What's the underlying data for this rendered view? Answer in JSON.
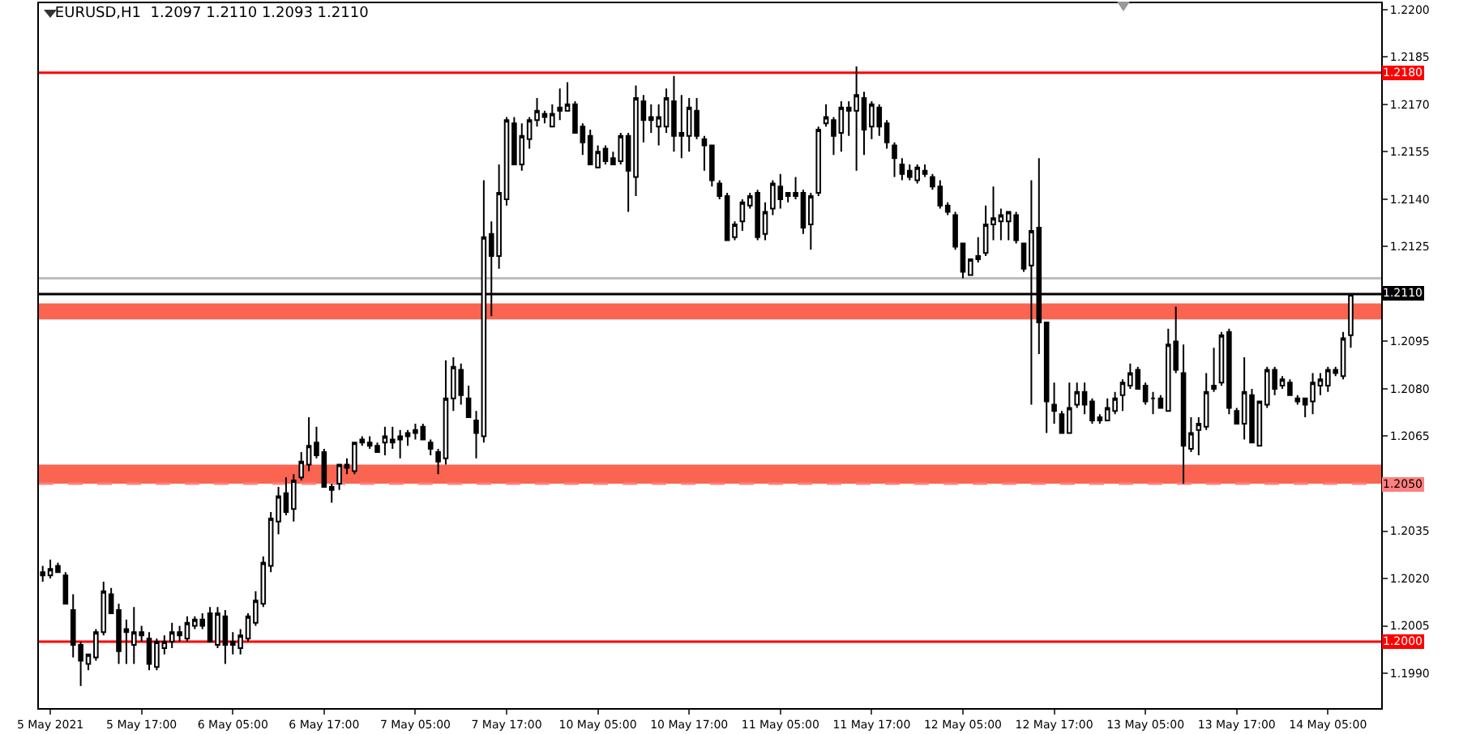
{
  "chart_data": {
    "type": "candlestick",
    "title": "EURUSD,H1  1.2097 1.2110 1.2093 1.2110",
    "categories": [
      null,
      "5 May 2021",
      null,
      null,
      null,
      null,
      null,
      null,
      null,
      null,
      null,
      null,
      null,
      "5 May 17:00",
      null,
      null,
      null,
      null,
      null,
      null,
      null,
      null,
      null,
      null,
      null,
      "6 May 05:00",
      null,
      null,
      null,
      null,
      null,
      null,
      null,
      null,
      null,
      null,
      null,
      "6 May 17:00",
      null,
      null,
      null,
      null,
      null,
      null,
      null,
      null,
      null,
      null,
      null,
      "7 May 05:00",
      null,
      null,
      null,
      null,
      null,
      null,
      null,
      null,
      null,
      null,
      null,
      "7 May 17:00",
      null,
      null,
      null,
      null,
      null,
      null,
      null,
      null,
      null,
      null,
      null,
      "10 May 05:00",
      null,
      null,
      null,
      null,
      null,
      null,
      null,
      null,
      null,
      null,
      null,
      "10 May 17:00",
      null,
      null,
      null,
      null,
      null,
      null,
      null,
      null,
      null,
      null,
      null,
      "11 May 05:00",
      null,
      null,
      null,
      null,
      null,
      null,
      null,
      null,
      null,
      null,
      null,
      "11 May 17:00",
      null,
      null,
      null,
      null,
      null,
      null,
      null,
      null,
      null,
      null,
      null,
      "12 May 05:00",
      null,
      null,
      null,
      null,
      null,
      null,
      null,
      null,
      null,
      null,
      null,
      "12 May 17:00",
      null,
      null,
      null,
      null,
      null,
      null,
      null,
      null,
      null,
      null,
      null,
      "13 May 05:00",
      null,
      null,
      null,
      null,
      null,
      null,
      null,
      null,
      null,
      null,
      null,
      "13 May 17:00",
      null,
      null,
      null,
      null,
      null,
      null,
      null,
      null,
      null,
      null,
      null,
      "14 May 05:00",
      null,
      null,
      null
    ],
    "ohlc": [
      [
        1.2022,
        1.2024,
        1.2019,
        1.2021
      ],
      [
        1.2021,
        1.2026,
        1.202,
        1.2023
      ],
      [
        1.2024,
        1.2025,
        1.2022,
        1.2022
      ],
      [
        1.2021,
        1.2022,
        1.2012,
        1.2012
      ],
      [
        1.201,
        1.2015,
        1.1995,
        1.1999
      ],
      [
        1.1999,
        1.2,
        1.1986,
        1.1994
      ],
      [
        1.1993,
        1.1996,
        1.1991,
        1.1996
      ],
      [
        1.1995,
        1.2004,
        1.1994,
        1.2003
      ],
      [
        1.2003,
        1.2019,
        1.2002,
        1.2016
      ],
      [
        1.2015,
        1.2017,
        1.2009,
        1.2009
      ],
      [
        1.201,
        1.2012,
        1.1993,
        1.1997
      ],
      [
        1.2004,
        1.2007,
        1.1993,
        1.2003
      ],
      [
        1.1999,
        1.2011,
        1.1993,
        1.2003
      ],
      [
        1.2003,
        1.2005,
        1.2,
        1.2002
      ],
      [
        1.2001,
        1.2003,
        1.1991,
        1.1993
      ],
      [
        1.1992,
        1.2001,
        1.1991,
        1.2
      ],
      [
        1.1998,
        1.2002,
        1.1996,
        1.2
      ],
      [
        1.2,
        1.2006,
        1.1998,
        1.2003
      ],
      [
        1.2002,
        1.2005,
        1.2,
        1.2003
      ],
      [
        1.2001,
        1.2008,
        1.2,
        1.2006
      ],
      [
        1.2005,
        1.2008,
        1.2004,
        1.2007
      ],
      [
        1.2007,
        1.2009,
        1.2004,
        1.2005
      ],
      [
        1.2009,
        1.2011,
        1.2,
        1.2
      ],
      [
        1.1999,
        1.2011,
        1.1998,
        1.2009
      ],
      [
        1.2008,
        1.201,
        1.1993,
        1.1999
      ],
      [
        1.2,
        1.2003,
        1.1996,
        1.1999
      ],
      [
        1.1998,
        1.2004,
        1.1996,
        1.2002
      ],
      [
        1.2001,
        1.2009,
        1.2,
        1.2008
      ],
      [
        1.2006,
        1.2016,
        1.2005,
        1.2013
      ],
      [
        1.2012,
        1.2027,
        1.2011,
        1.2025
      ],
      [
        1.2024,
        1.2041,
        1.2022,
        1.2039
      ],
      [
        1.2038,
        1.2049,
        1.2034,
        1.2046
      ],
      [
        1.2047,
        1.2052,
        1.204,
        1.2041
      ],
      [
        1.2042,
        1.2053,
        1.2038,
        1.2051
      ],
      [
        1.2052,
        1.206,
        1.2051,
        1.2057
      ],
      [
        1.2056,
        1.2071,
        1.2054,
        1.2062
      ],
      [
        1.2063,
        1.2068,
        1.2058,
        1.2059
      ],
      [
        1.206,
        1.2061,
        1.2049,
        1.2049
      ],
      [
        1.2049,
        1.205,
        1.2044,
        1.2048
      ],
      [
        1.205,
        1.2056,
        1.2048,
        1.2056
      ],
      [
        1.2055,
        1.2058,
        1.2053,
        1.2056
      ],
      [
        1.2054,
        1.2063,
        1.2053,
        1.2063
      ],
      [
        1.2063,
        1.2065,
        1.2062,
        1.2064
      ],
      [
        1.2063,
        1.2065,
        1.2061,
        1.2062
      ],
      [
        1.2062,
        1.2063,
        1.206,
        1.206
      ],
      [
        1.2063,
        1.2068,
        1.2059,
        1.2065
      ],
      [
        1.2064,
        1.2068,
        1.2061,
        1.2063
      ],
      [
        1.2064,
        1.2067,
        1.2058,
        1.2065
      ],
      [
        1.2066,
        1.2067,
        1.2062,
        1.2065
      ],
      [
        1.2066,
        1.2069,
        1.2064,
        1.2067
      ],
      [
        1.2068,
        1.2069,
        1.2064,
        1.2064
      ],
      [
        1.2063,
        1.2064,
        1.2059,
        1.2061
      ],
      [
        1.206,
        1.2061,
        1.2053,
        1.2057
      ],
      [
        1.2058,
        1.2089,
        1.2056,
        1.2077
      ],
      [
        1.2077,
        1.209,
        1.2073,
        1.2087
      ],
      [
        1.2086,
        1.2088,
        1.2075,
        1.2078
      ],
      [
        1.2077,
        1.2081,
        1.2071,
        1.2071
      ],
      [
        1.207,
        1.2073,
        1.2058,
        1.2066
      ],
      [
        1.2065,
        1.2146,
        1.2063,
        1.2128
      ],
      [
        1.2129,
        1.2133,
        1.2103,
        1.2122
      ],
      [
        1.2122,
        1.2151,
        1.2118,
        1.2142
      ],
      [
        1.214,
        1.2166,
        1.2138,
        1.2165
      ],
      [
        1.2164,
        1.2166,
        1.2151,
        1.2151
      ],
      [
        1.2151,
        1.2164,
        1.2149,
        1.216
      ],
      [
        1.2159,
        1.2166,
        1.2156,
        1.2165
      ],
      [
        1.2165,
        1.2172,
        1.2163,
        1.2168
      ],
      [
        1.2167,
        1.2168,
        1.2164,
        1.2166
      ],
      [
        1.2163,
        1.217,
        1.2163,
        1.2167
      ],
      [
        1.2168,
        1.2175,
        1.2165,
        1.2169
      ],
      [
        1.2168,
        1.2177,
        1.2168,
        1.217
      ],
      [
        1.217,
        1.2171,
        1.2161,
        1.2161
      ],
      [
        1.2163,
        1.2164,
        1.2154,
        1.2158
      ],
      [
        1.216,
        1.2162,
        1.2151,
        1.2151
      ],
      [
        1.215,
        1.2157,
        1.215,
        1.2155
      ],
      [
        1.2156,
        1.2157,
        1.2151,
        1.2152
      ],
      [
        1.2153,
        1.2155,
        1.2151,
        1.2151
      ],
      [
        1.2152,
        1.2161,
        1.2151,
        1.216
      ],
      [
        1.216,
        1.2161,
        1.2136,
        1.2149
      ],
      [
        1.2147,
        1.2176,
        1.2141,
        1.2172
      ],
      [
        1.2171,
        1.2173,
        1.2158,
        1.2165
      ],
      [
        1.2166,
        1.217,
        1.2161,
        1.2165
      ],
      [
        1.2163,
        1.217,
        1.2157,
        1.2166
      ],
      [
        1.2163,
        1.2175,
        1.2161,
        1.2172
      ],
      [
        1.2171,
        1.2179,
        1.2155,
        1.216
      ],
      [
        1.216,
        1.2173,
        1.2153,
        1.2161
      ],
      [
        1.216,
        1.2172,
        1.2155,
        1.2169
      ],
      [
        1.2168,
        1.2172,
        1.2159,
        1.216
      ],
      [
        1.2159,
        1.216,
        1.2149,
        1.2157
      ],
      [
        1.2157,
        1.2157,
        1.2144,
        1.2146
      ],
      [
        1.2145,
        1.2146,
        1.214,
        1.2141
      ],
      [
        1.2141,
        1.2142,
        1.2127,
        1.2127
      ],
      [
        1.2128,
        1.2133,
        1.2127,
        1.2132
      ],
      [
        1.2133,
        1.214,
        1.213,
        1.2139
      ],
      [
        1.2138,
        1.2142,
        1.2137,
        1.2141
      ],
      [
        1.2142,
        1.2143,
        1.2127,
        1.2128
      ],
      [
        1.2129,
        1.2139,
        1.2127,
        1.2136
      ],
      [
        1.2137,
        1.2146,
        1.2135,
        1.2145
      ],
      [
        1.2144,
        1.2148,
        1.2137,
        1.214
      ],
      [
        1.2141,
        1.2142,
        1.2139,
        1.2142
      ],
      [
        1.2142,
        1.2147,
        1.214,
        1.2141
      ],
      [
        1.2142,
        1.2143,
        1.2129,
        1.2131
      ],
      [
        1.2132,
        1.2142,
        1.2124,
        1.2141
      ],
      [
        1.2142,
        1.2163,
        1.2141,
        1.2162
      ],
      [
        1.2164,
        1.217,
        1.2163,
        1.2166
      ],
      [
        1.2165,
        1.2166,
        1.2154,
        1.216
      ],
      [
        1.2161,
        1.2171,
        1.2155,
        1.2169
      ],
      [
        1.2168,
        1.2171,
        1.216,
        1.2169
      ],
      [
        1.2168,
        1.2182,
        1.2149,
        1.2173
      ],
      [
        1.2172,
        1.2174,
        1.2154,
        1.2162
      ],
      [
        1.2163,
        1.2171,
        1.2159,
        1.217
      ],
      [
        1.2169,
        1.217,
        1.216,
        1.2163
      ],
      [
        1.2164,
        1.2165,
        1.2156,
        1.2158
      ],
      [
        1.2157,
        1.2158,
        1.2147,
        1.2153
      ],
      [
        1.2151,
        1.2153,
        1.2146,
        1.2148
      ],
      [
        1.2149,
        1.2151,
        1.2146,
        1.2147
      ],
      [
        1.2146,
        1.2151,
        1.2145,
        1.215
      ],
      [
        1.2149,
        1.2151,
        1.2147,
        1.2148
      ],
      [
        1.2147,
        1.2148,
        1.2143,
        1.2144
      ],
      [
        1.2144,
        1.2146,
        1.2137,
        1.2138
      ],
      [
        1.2138,
        1.2139,
        1.2135,
        1.2136
      ],
      [
        1.2135,
        1.2136,
        1.2124,
        1.2125
      ],
      [
        1.2126,
        1.2126,
        1.2115,
        1.2117
      ],
      [
        1.2116,
        1.2121,
        1.2116,
        1.2121
      ],
      [
        1.2121,
        1.2128,
        1.212,
        1.2122
      ],
      [
        1.2123,
        1.2138,
        1.2122,
        1.2132
      ],
      [
        1.2132,
        1.2144,
        1.2127,
        1.2134
      ],
      [
        1.2133,
        1.2137,
        1.2127,
        1.2135
      ],
      [
        1.2133,
        1.2136,
        1.2127,
        1.2136
      ],
      [
        1.2135,
        1.2136,
        1.2126,
        1.2127
      ],
      [
        1.2126,
        1.2126,
        1.2117,
        1.2118
      ],
      [
        1.2119,
        1.2146,
        1.2075,
        1.213
      ],
      [
        1.2131,
        1.2153,
        1.2091,
        1.2101
      ],
      [
        1.2101,
        1.2101,
        1.2066,
        1.2076
      ],
      [
        1.2075,
        1.2082,
        1.2069,
        1.2073
      ],
      [
        1.2072,
        1.2073,
        1.2066,
        1.2066
      ],
      [
        1.2066,
        1.2082,
        1.2066,
        1.2074
      ],
      [
        1.2075,
        1.2082,
        1.2074,
        1.2079
      ],
      [
        1.2079,
        1.2082,
        1.2072,
        1.2075
      ],
      [
        1.2076,
        1.2077,
        1.2069,
        1.207
      ],
      [
        1.207,
        1.2072,
        1.2069,
        1.2071
      ],
      [
        1.207,
        1.2077,
        1.207,
        1.2074
      ],
      [
        1.2073,
        1.2079,
        1.2072,
        1.2077
      ],
      [
        1.2078,
        1.2083,
        1.2073,
        1.2082
      ],
      [
        1.2081,
        1.2088,
        1.208,
        1.2085
      ],
      [
        1.2086,
        1.2087,
        1.208,
        1.208
      ],
      [
        1.2081,
        1.2082,
        1.2075,
        1.2076
      ],
      [
        1.2077,
        1.2079,
        1.2072,
        1.2077
      ],
      [
        1.2077,
        1.2078,
        1.2074,
        1.2074
      ],
      [
        1.2073,
        1.2099,
        1.2073,
        1.2094
      ],
      [
        1.2095,
        1.2106,
        1.2085,
        1.2086
      ],
      [
        1.2085,
        1.2094,
        1.205,
        1.2062
      ],
      [
        1.2061,
        1.2071,
        1.206,
        1.2066
      ],
      [
        1.2067,
        1.2071,
        1.2059,
        1.2069
      ],
      [
        1.2068,
        1.2085,
        1.2067,
        1.2079
      ],
      [
        1.208,
        1.2093,
        1.2079,
        1.2081
      ],
      [
        1.2082,
        1.2098,
        1.2081,
        1.2097
      ],
      [
        1.2098,
        1.2099,
        1.2072,
        1.2074
      ],
      [
        1.2073,
        1.2074,
        1.2069,
        1.2069
      ],
      [
        1.2069,
        1.209,
        1.2064,
        1.2079
      ],
      [
        1.2078,
        1.208,
        1.2063,
        1.2063
      ],
      [
        1.2062,
        1.2076,
        1.2062,
        1.2076
      ],
      [
        1.2075,
        1.2087,
        1.2074,
        1.2086
      ],
      [
        1.2086,
        1.2087,
        1.2078,
        1.208
      ],
      [
        1.2081,
        1.2084,
        1.208,
        1.2083
      ],
      [
        1.2082,
        1.2083,
        1.2078,
        1.2078
      ],
      [
        1.2077,
        1.2078,
        1.2075,
        1.2076
      ],
      [
        1.2077,
        1.2077,
        1.2071,
        1.2075
      ],
      [
        1.2076,
        1.2085,
        1.2072,
        1.2082
      ],
      [
        1.2081,
        1.2085,
        1.2078,
        1.2083
      ],
      [
        1.2081,
        1.2087,
        1.2079,
        1.2086
      ],
      [
        1.2086,
        1.2087,
        1.2084,
        1.2085
      ],
      [
        1.2084,
        1.2098,
        1.2083,
        1.2096
      ],
      [
        1.2097,
        1.211,
        1.2093,
        1.211
      ]
    ],
    "ylim": [
      1.1979,
      1.2202
    ],
    "yticks": [
      {
        "value": 1.22,
        "label": "1.2200"
      },
      1.2185,
      {
        "value": 1.217,
        "label": "1.2170"
      },
      1.2155,
      {
        "value": 1.214,
        "label": "1.2140"
      },
      1.2125,
      1.2095,
      {
        "value": 1.208,
        "label": "1.2080"
      },
      1.2065,
      1.2035,
      {
        "value": 1.202,
        "label": "1.2020"
      },
      1.2005,
      {
        "value": 1.199,
        "label": "1.1990"
      }
    ],
    "ref_lines": [
      {
        "axis": "y",
        "value": 1.218,
        "label": "1.2180",
        "color": "#ff0000",
        "line_style": "solid"
      },
      {
        "axis": "y",
        "value": 1.2115,
        "color": "#bdbdbd",
        "line_style": "solid"
      },
      {
        "axis": "y",
        "value": 1.211,
        "label": "1.2110",
        "color": "#000000",
        "line_style": "solid"
      },
      {
        "axis": "y",
        "value": 1.205,
        "label": "1.2050",
        "color": "#ff8080",
        "line_style": "dashed"
      },
      {
        "axis": "y",
        "value": 1.2,
        "label": "1.2000",
        "color": "#ff0000",
        "line_style": "solid"
      }
    ],
    "bands": [
      {
        "axis": "y",
        "from": 1.2102,
        "to": 1.2107,
        "color": "#fa6450"
      },
      {
        "axis": "y",
        "from": 1.205,
        "to": 1.2056,
        "color": "#fa6450"
      }
    ]
  }
}
